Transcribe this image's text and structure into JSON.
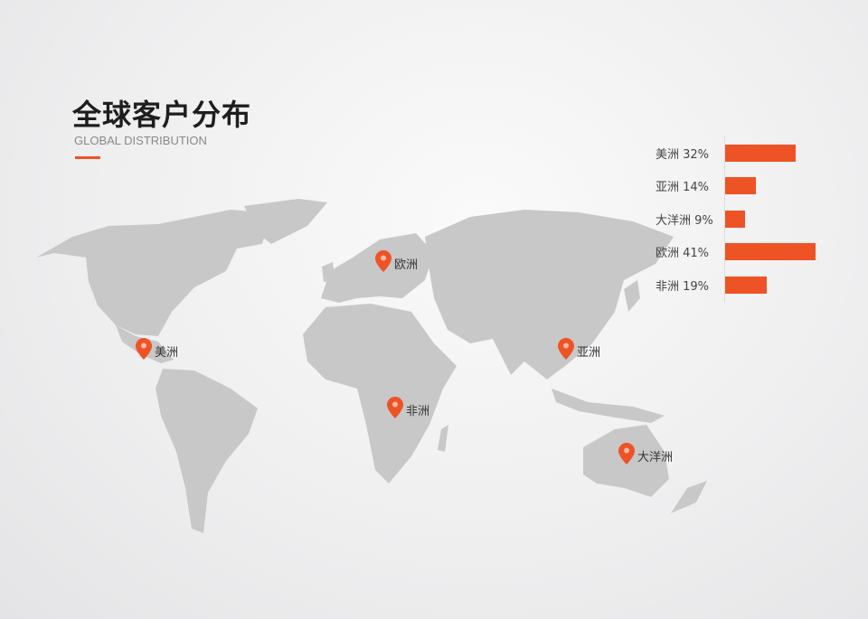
{
  "header": {
    "title": "全球客户分布",
    "subtitle": "GLOBAL DISTRIBUTION"
  },
  "colors": {
    "accent": "#ee5326",
    "land": "#c8c8c8"
  },
  "markers": [
    {
      "label": "欧洲",
      "icon": "map-pin-icon"
    },
    {
      "label": "美洲",
      "icon": "map-pin-icon"
    },
    {
      "label": "亚洲",
      "icon": "map-pin-icon"
    },
    {
      "label": "非洲",
      "icon": "map-pin-icon"
    },
    {
      "label": "大洋洲",
      "icon": "map-pin-icon"
    }
  ],
  "chart_data": {
    "type": "bar",
    "orientation": "horizontal",
    "categories": [
      "美洲",
      "亚洲",
      "大洋洲",
      "欧洲",
      "非洲"
    ],
    "values": [
      32,
      14,
      9,
      41,
      19
    ],
    "unit": "%",
    "labels": [
      "美洲 32%",
      "亚洲 14%",
      "大洋洲 9%",
      "欧洲 41%",
      "非洲 19%"
    ],
    "grid": false
  }
}
